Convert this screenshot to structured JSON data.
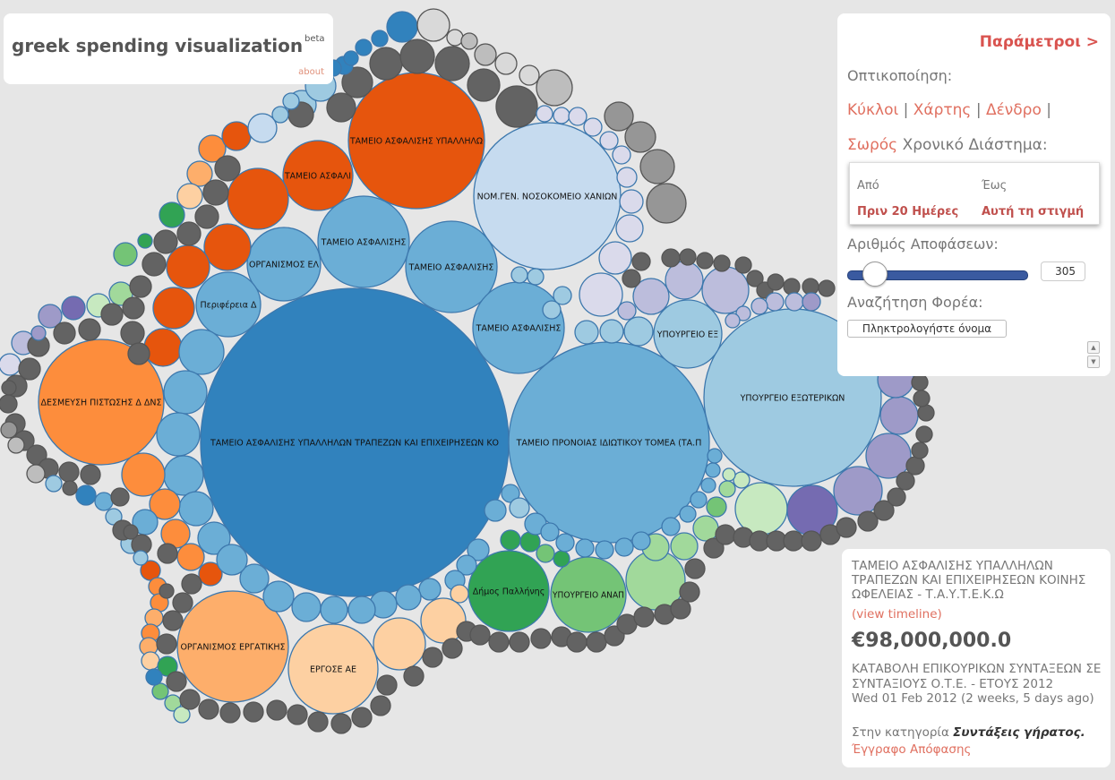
{
  "header": {
    "title": "greek spending visualization",
    "beta": "beta",
    "about": "about"
  },
  "params": {
    "toggle": "Παράμετροι >",
    "viz_label": "Οπτικοποίηση:",
    "viz_circles": "Κύκλοι",
    "viz_map": "Χάρτης",
    "viz_tree": "Δένδρο",
    "viz_heap": "Σωρός",
    "time_label": "Χρονικό Διάστημα:",
    "from_label": "Από",
    "to_label": "Έως",
    "from_value": "Πριν 20 Ημέρες",
    "to_value": "Αυτή τη στιγμή",
    "count_label": "Αριθμός Αποφάσεων:",
    "count_value": "305",
    "search_label": "Αναζήτηση Φορέα:",
    "search_placeholder": "Πληκτρολογήστε όνομα"
  },
  "info": {
    "name": "ΤΑΜΕΙΟ ΑΣΦΑΛΙΣΗΣ ΥΠΑΛΛΗΛΩΝ ΤΡΑΠΕΖΩΝ ΚΑΙ ΕΠΙΧΕΙΡΗΣΕΩΝ ΚΟΙΝΗΣ ΩΦΕΛΕΙΑΣ - Τ.Α.Υ.Τ.Ε.Κ.Ω",
    "timeline": "(view timeline)",
    "amount": "€98,000,000.0",
    "description": "ΚΑΤΑΒΟΛΗ ΕΠΙΚΟΥΡΙΚΩΝ ΣΥΝΤΑΞΕΩΝ ΣΕ ΣΥΝΤΑΞΙΟΥΣ Ο.Τ.Ε. - ΕΤΟΥΣ 2012",
    "date": "Wed 01 Feb 2012 (2 weeks, 5 days ago)",
    "category_prefix": "Στην κατηγορία",
    "category": "Συντάξεις γήρατος.",
    "document": "Έγγραφο Απόφασης"
  },
  "colors": {
    "blue_dark": "#3182bd",
    "blue_mid": "#6baed6",
    "blue_light": "#9ecae1",
    "blue_pale": "#c6dbef",
    "orange_dark": "#e6550d",
    "orange": "#fd8d3c",
    "orange_light": "#fdae6b",
    "orange_pale": "#fdd0a2",
    "green_dark": "#31a354",
    "green": "#74c476",
    "green_light": "#a1d99b",
    "green_pale": "#c7e9c0",
    "purple_dark": "#756bb1",
    "purple": "#9e9ac8",
    "purple_light": "#bcbddc",
    "purple_pale": "#dadaeb",
    "gray_dark": "#636363",
    "gray": "#969696",
    "gray_light": "#bdbdbd",
    "gray_pale": "#d9d9d9"
  },
  "bubble_labels": {
    "b1": "ΤΑΜΕΙΟ ΑΣΦΑΛΙΣΗΣ ΥΠΑΛΛΗΛΩΝ ΤΡΑΠΕΖΩΝ ΚΑΙ ΕΠΙΧΕΙΡΗΣΕΩΝ ΚΟ",
    "b2": "ΤΑΜΕΙΟ ΠΡΟΝΟΙΑΣ ΙΔΙΩΤΙΚΟΥ ΤΟΜΕΑ (ΤΑ.Π",
    "b3": "ΥΠΟΥΡΓΕΙΟ ΕΞΩΤΕΡΙΚΩΝ",
    "b4": "ΤΑΜΕΙΟ ΑΣΦΑΛΙΣΗΣ ΥΠΑΛΛΗΛΩ",
    "b5": "ΝΟΜ.ΓΕΝ. ΝΟΣΟΚΟΜΕΙΟ ΧΑΝΙΩΝ",
    "b6": "ΔΕΣΜΕΥΣΗ ΠΙΣΤΩΣΗΣ Δ ΔΝΣ",
    "b7": "ΟΡΓΑΝΙΣΜΟΣ ΕΡΓΑΤΙΚΗΣ",
    "b8": "ΕΡΓΟΣΕ ΑΕ",
    "b9": "ΤΑΜΕΙΟ ΑΣΦΑΛΙΣΗΣ",
    "b10": "ΤΑΜΕΙΟ ΑΣΦΑΛΙΣΗΣ",
    "b11": "ΤΑΜΕΙΟ ΑΣΦΑΛΙΣΗΣ",
    "b12": "ΟΡΓΑΝΙΣΜΟΣ ΕΛ",
    "b13": "ΤΑΜΕΙΟ ΑΣΦΑΛΙ",
    "b14": "Περιφέρεια Δ",
    "b15": "Δήμος Παλλήνης",
    "b16": "ΥΠΟΥΡΓΕΙΟ ΑΝΑΠ",
    "b17": "ΥΠΟΥΡΓΕΙΟ ΕΞ"
  }
}
